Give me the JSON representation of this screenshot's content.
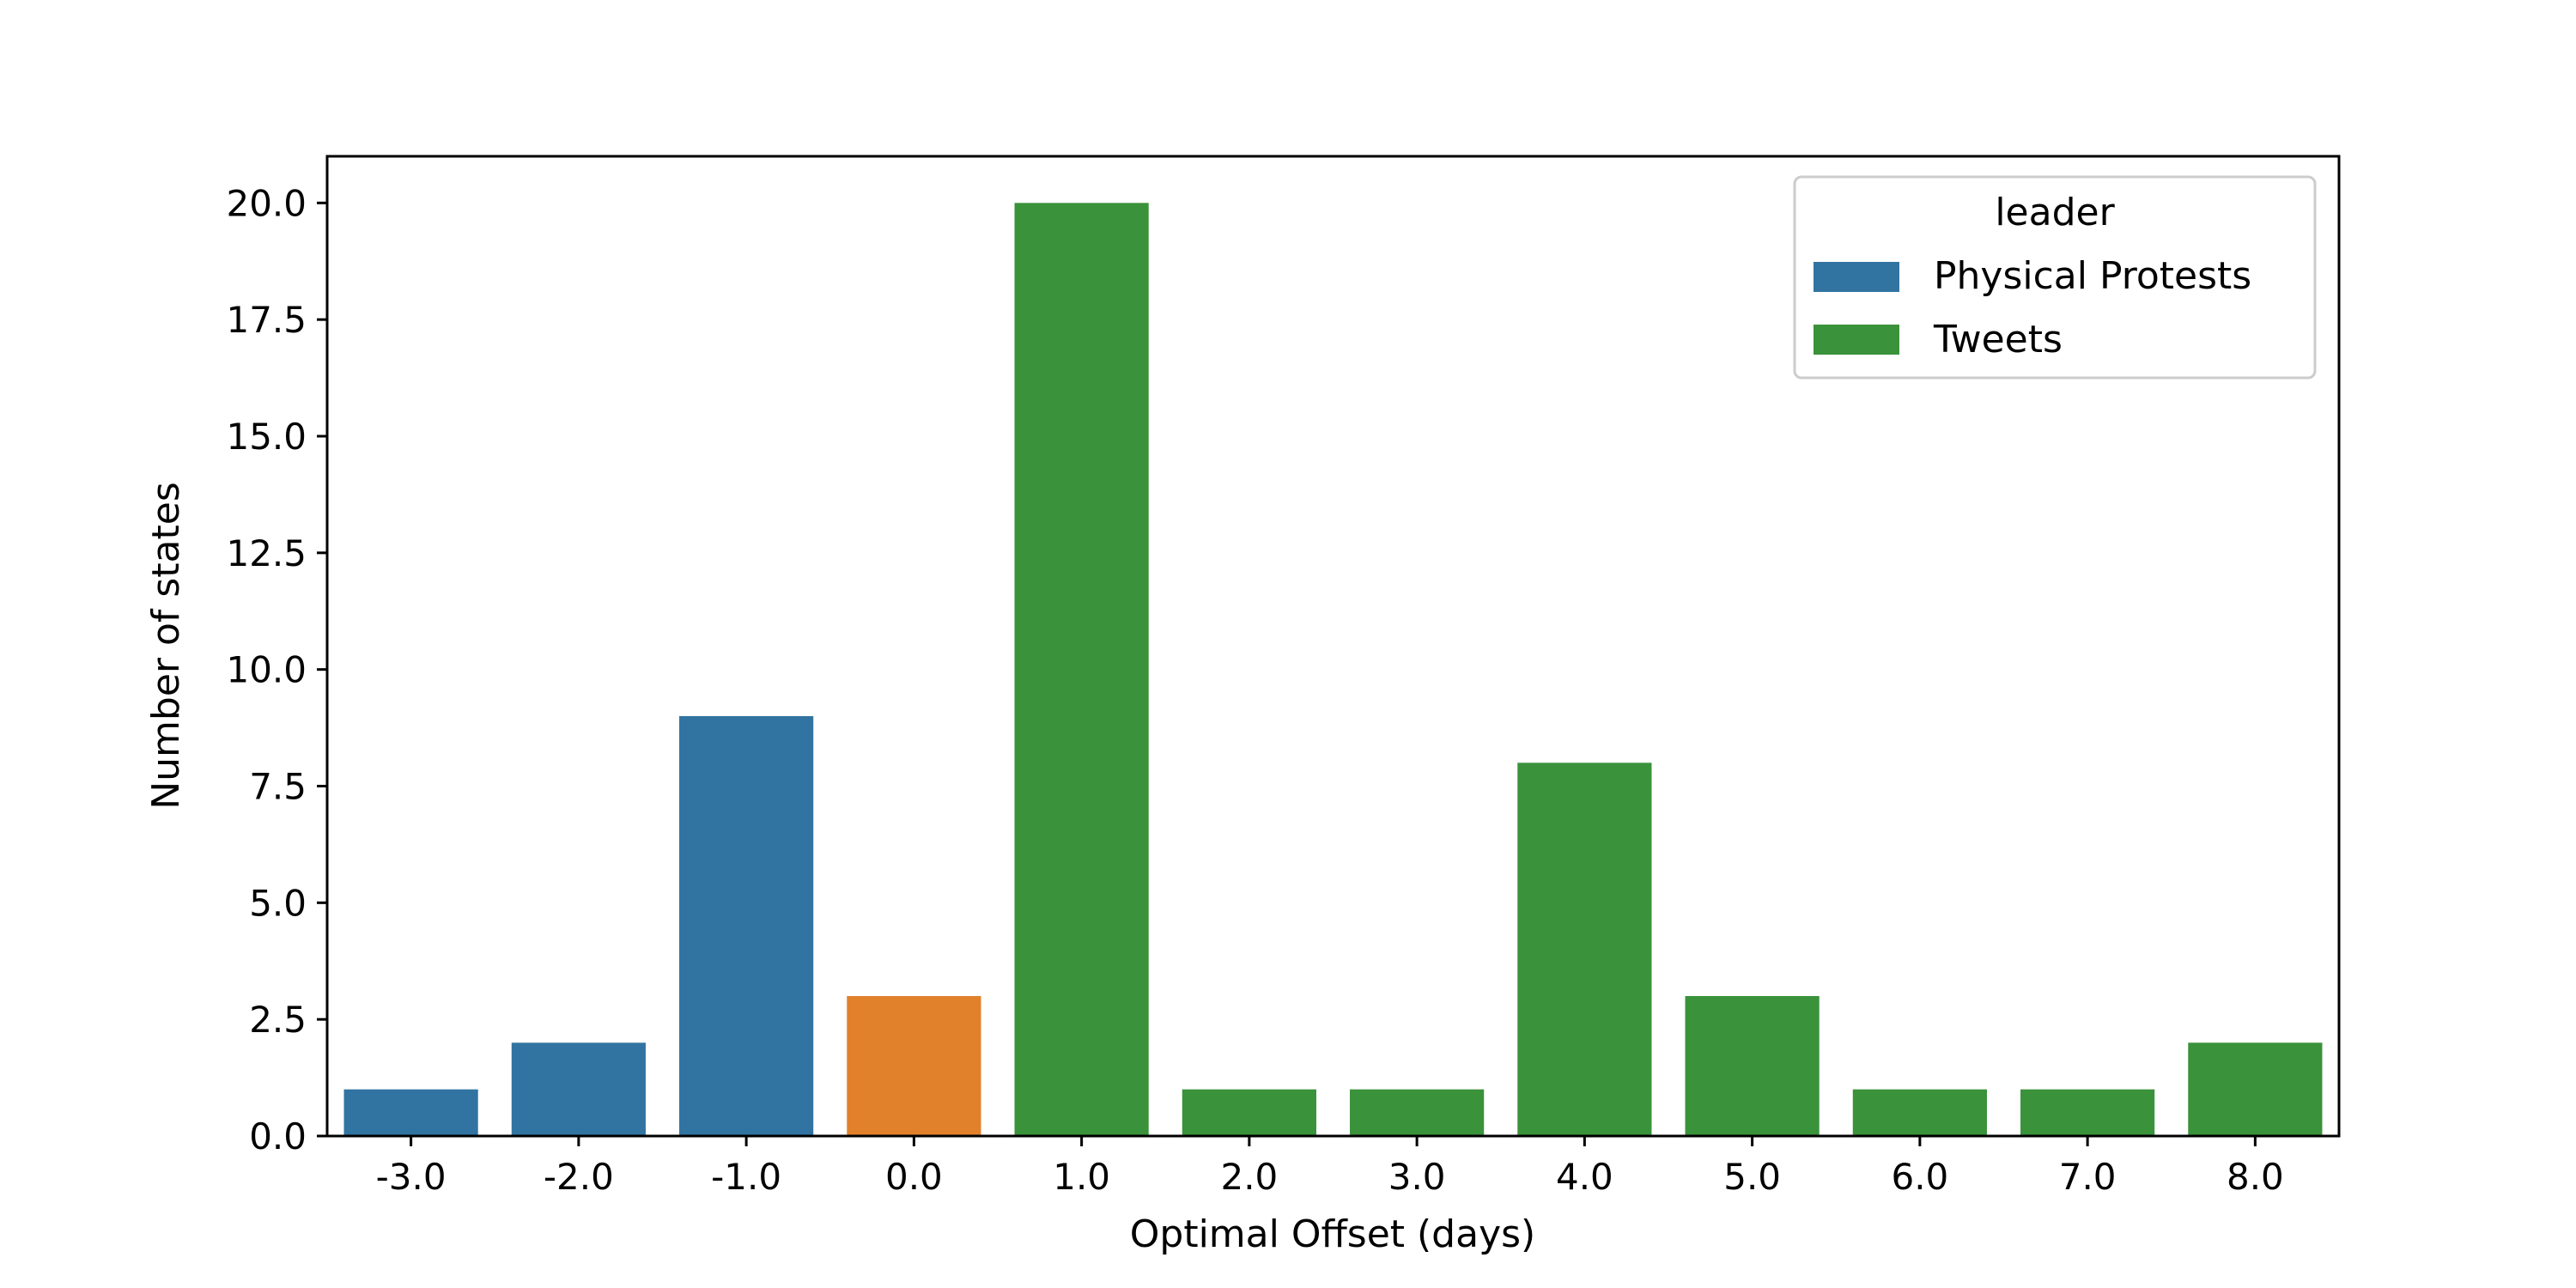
{
  "chart_data": {
    "type": "bar",
    "xlabel": "Optimal Offset (days)",
    "ylabel": "Number of states",
    "categories": [
      "-3.0",
      "-2.0",
      "-1.0",
      "0.0",
      "1.0",
      "2.0",
      "3.0",
      "4.0",
      "5.0",
      "6.0",
      "7.0",
      "8.0"
    ],
    "values": [
      1,
      2,
      9,
      3,
      20,
      1,
      1,
      8,
      3,
      1,
      1,
      2
    ],
    "leader": [
      "Physical Protests",
      "Physical Protests",
      "Physical Protests",
      "",
      "Tweets",
      "Tweets",
      "Tweets",
      "Tweets",
      "Tweets",
      "Tweets",
      "Tweets",
      "Tweets"
    ],
    "ylim": [
      0,
      21
    ],
    "yticks": [
      "0.0",
      "2.5",
      "5.0",
      "7.5",
      "10.0",
      "12.5",
      "15.0",
      "17.5",
      "20.0"
    ],
    "grid": false,
    "legend": {
      "placement": "top-right",
      "title": "leader",
      "entries": [
        {
          "name": "Physical Protests",
          "color": "#3274a1"
        },
        {
          "name": "Tweets",
          "color": "#3a923a"
        }
      ]
    },
    "colors": {
      "Physical Protests": "#3274a1",
      "Tweets": "#3a923a",
      "other": "#e1812c"
    }
  }
}
